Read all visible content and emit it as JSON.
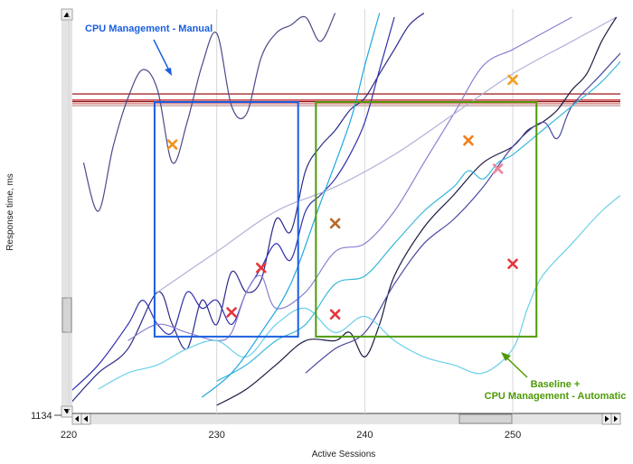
{
  "chart_data": {
    "type": "line",
    "xlabel": "Active Sessions",
    "ylabel": "Response time, ms",
    "x_ticks": [
      220,
      230,
      240,
      250
    ],
    "xlim": [
      220,
      258
    ],
    "y_visible_tick": "1134",
    "grid": "vertical",
    "series": [
      {
        "color": "#4a4a8a",
        "points": [
          [
            221,
            0.62
          ],
          [
            222,
            0.5
          ],
          [
            223,
            0.66
          ],
          [
            224,
            0.78
          ],
          [
            225,
            0.85
          ],
          [
            226,
            0.8
          ],
          [
            227,
            0.62
          ],
          [
            228,
            0.72
          ],
          [
            229,
            0.86
          ],
          [
            230,
            0.94
          ],
          [
            231,
            0.76
          ],
          [
            232,
            0.74
          ],
          [
            233,
            0.88
          ],
          [
            234,
            0.94
          ],
          [
            235,
            0.96
          ],
          [
            236,
            0.98
          ],
          [
            237,
            0.92
          ],
          [
            238,
            0.99
          ]
        ]
      },
      {
        "color": "#2a2a8a",
        "points": [
          [
            220,
            0.02
          ],
          [
            222,
            0.1
          ],
          [
            224,
            0.16
          ],
          [
            226,
            0.3
          ],
          [
            227,
            0.22
          ],
          [
            228,
            0.16
          ],
          [
            229,
            0.28
          ],
          [
            230,
            0.22
          ],
          [
            231,
            0.35
          ],
          [
            232,
            0.3
          ],
          [
            233,
            0.33
          ],
          [
            234,
            0.48
          ],
          [
            235,
            0.45
          ],
          [
            236,
            0.6
          ],
          [
            237,
            0.66
          ],
          [
            238,
            0.7
          ],
          [
            239,
            0.75
          ],
          [
            240,
            0.78
          ],
          [
            241,
            0.84
          ],
          [
            242,
            0.9
          ],
          [
            243,
            0.96
          ],
          [
            244,
            0.99
          ]
        ]
      },
      {
        "color": "#3030b0",
        "points": [
          [
            220,
            0.05
          ],
          [
            222,
            0.12
          ],
          [
            224,
            0.22
          ],
          [
            225,
            0.28
          ],
          [
            226,
            0.22
          ],
          [
            227,
            0.2
          ],
          [
            228,
            0.3
          ],
          [
            229,
            0.26
          ],
          [
            230,
            0.28
          ],
          [
            231,
            0.22
          ],
          [
            232,
            0.3
          ],
          [
            233,
            0.36
          ],
          [
            234,
            0.42
          ],
          [
            235,
            0.38
          ],
          [
            236,
            0.5
          ],
          [
            237,
            0.54
          ],
          [
            238,
            0.58
          ],
          [
            239,
            0.64
          ],
          [
            240,
            0.72
          ],
          [
            241,
            0.85
          ],
          [
            242,
            0.98
          ]
        ]
      },
      {
        "color": "#8a80d0",
        "points": [
          [
            224,
            0.18
          ],
          [
            226,
            0.22
          ],
          [
            228,
            0.2
          ],
          [
            230,
            0.18
          ],
          [
            231,
            0.2
          ],
          [
            232,
            0.3
          ],
          [
            233,
            0.34
          ],
          [
            234,
            0.26
          ],
          [
            236,
            0.3
          ],
          [
            238,
            0.4
          ],
          [
            240,
            0.42
          ],
          [
            242,
            0.5
          ],
          [
            244,
            0.62
          ],
          [
            246,
            0.74
          ],
          [
            248,
            0.86
          ],
          [
            250,
            0.9
          ],
          [
            252,
            0.94
          ],
          [
            254,
            0.98
          ]
        ]
      },
      {
        "color": "#b0b0d8",
        "points": [
          [
            226,
            0.3
          ],
          [
            230,
            0.4
          ],
          [
            234,
            0.5
          ],
          [
            238,
            0.56
          ],
          [
            242,
            0.64
          ],
          [
            246,
            0.74
          ],
          [
            250,
            0.84
          ],
          [
            254,
            0.92
          ],
          [
            257,
            0.98
          ]
        ]
      },
      {
        "color": "#1a1a40",
        "points": [
          [
            230,
            0.02
          ],
          [
            232,
            0.06
          ],
          [
            234,
            0.12
          ],
          [
            236,
            0.18
          ],
          [
            238,
            0.18
          ],
          [
            239,
            0.2
          ],
          [
            240,
            0.14
          ],
          [
            241,
            0.22
          ],
          [
            242,
            0.34
          ],
          [
            244,
            0.46
          ],
          [
            246,
            0.54
          ],
          [
            248,
            0.62
          ],
          [
            250,
            0.66
          ],
          [
            251,
            0.7
          ],
          [
            252,
            0.72
          ],
          [
            253,
            0.75
          ],
          [
            254,
            0.8
          ],
          [
            255,
            0.84
          ],
          [
            256,
            0.92
          ],
          [
            257,
            0.98
          ]
        ]
      },
      {
        "color": "#4848a0",
        "points": [
          [
            236,
            0.1
          ],
          [
            238,
            0.16
          ],
          [
            240,
            0.2
          ],
          [
            242,
            0.32
          ],
          [
            244,
            0.42
          ],
          [
            246,
            0.48
          ],
          [
            248,
            0.56
          ],
          [
            250,
            0.66
          ],
          [
            252,
            0.72
          ],
          [
            253,
            0.68
          ],
          [
            254,
            0.76
          ],
          [
            256,
            0.84
          ],
          [
            258,
            0.92
          ]
        ]
      },
      {
        "color": "#38b8d8",
        "points": [
          [
            230,
            0.08
          ],
          [
            232,
            0.12
          ],
          [
            234,
            0.18
          ],
          [
            236,
            0.22
          ],
          [
            238,
            0.32
          ],
          [
            240,
            0.34
          ],
          [
            242,
            0.42
          ],
          [
            244,
            0.5
          ],
          [
            246,
            0.56
          ],
          [
            247,
            0.6
          ],
          [
            248,
            0.58
          ],
          [
            249,
            0.62
          ],
          [
            250,
            0.64
          ],
          [
            252,
            0.7
          ],
          [
            254,
            0.76
          ],
          [
            256,
            0.82
          ],
          [
            258,
            0.9
          ]
        ]
      },
      {
        "color": "#6ad0e8",
        "points": [
          [
            222,
            0.06
          ],
          [
            224,
            0.1
          ],
          [
            226,
            0.12
          ],
          [
            228,
            0.16
          ],
          [
            230,
            0.18
          ],
          [
            232,
            0.14
          ],
          [
            234,
            0.22
          ],
          [
            236,
            0.26
          ],
          [
            238,
            0.2
          ],
          [
            240,
            0.24
          ],
          [
            242,
            0.18
          ],
          [
            244,
            0.14
          ],
          [
            246,
            0.12
          ],
          [
            248,
            0.1
          ],
          [
            250,
            0.16
          ],
          [
            251,
            0.26
          ],
          [
            252,
            0.34
          ],
          [
            254,
            0.42
          ],
          [
            256,
            0.5
          ],
          [
            258,
            0.56
          ]
        ]
      },
      {
        "color": "#1fa8e0",
        "points": [
          [
            229,
            0.04
          ],
          [
            231,
            0.1
          ],
          [
            233,
            0.2
          ],
          [
            235,
            0.32
          ],
          [
            237,
            0.52
          ],
          [
            239,
            0.72
          ],
          [
            240,
            0.86
          ],
          [
            241,
            0.99
          ]
        ]
      }
    ],
    "thresholds": [
      {
        "color": "#a52a2a",
        "y": 0.79
      },
      {
        "color": "#c8373d",
        "y": 0.775
      },
      {
        "color": "#8b1a1a",
        "y": 0.771
      },
      {
        "color": "#e08080",
        "y": 0.766
      },
      {
        "color": "#c0a0a0",
        "y": 0.761
      }
    ],
    "markers": [
      {
        "x": 227,
        "y": 0.665,
        "color": "#f0931c"
      },
      {
        "x": 233,
        "y": 0.36,
        "color": "#e6353a"
      },
      {
        "x": 231,
        "y": 0.25,
        "color": "#e6353a"
      },
      {
        "x": 238,
        "y": 0.47,
        "color": "#b8682a"
      },
      {
        "x": 238,
        "y": 0.245,
        "color": "#e6353a"
      },
      {
        "x": 247,
        "y": 0.675,
        "color": "#f07f1c"
      },
      {
        "x": 250,
        "y": 0.825,
        "color": "#f0a020"
      },
      {
        "x": 249,
        "y": 0.605,
        "color": "#f0889a"
      },
      {
        "x": 250,
        "y": 0.37,
        "color": "#e6353a"
      }
    ],
    "regions": [
      {
        "color": "#1a5fe0",
        "x": [
          225.8,
          235.5
        ],
        "y": [
          0.19,
          0.77
        ]
      },
      {
        "color": "#4e9a06",
        "x": [
          236.7,
          251.6
        ],
        "y": [
          0.19,
          0.77
        ]
      }
    ],
    "annotations": [
      {
        "text": "CPU Management - Manual",
        "color": "#1a5fe0"
      },
      {
        "text": "Baseline +",
        "color": "#4e9a06"
      },
      {
        "text": "CPU Management - Automatic",
        "color": "#4e9a06"
      }
    ]
  }
}
